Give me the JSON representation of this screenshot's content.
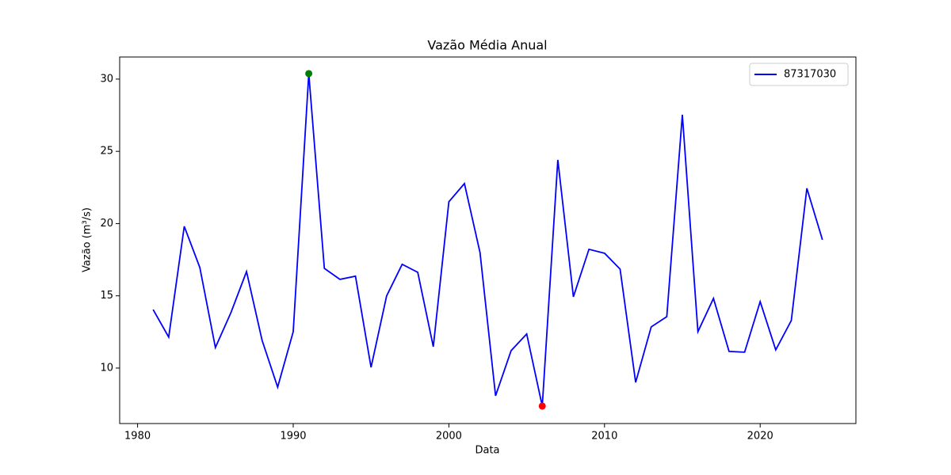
{
  "chart_data": {
    "type": "line",
    "title": "Vazão Média Anual",
    "xlabel": "Data",
    "ylabel": "Vazão (m³/s)",
    "x": [
      1981,
      1982,
      1983,
      1984,
      1985,
      1986,
      1987,
      1988,
      1989,
      1990,
      1991,
      1992,
      1993,
      1994,
      1995,
      1996,
      1997,
      1998,
      1999,
      2000,
      2001,
      2002,
      2003,
      2004,
      2005,
      2006,
      2007,
      2008,
      2009,
      2010,
      2011,
      2012,
      2013,
      2014,
      2015,
      2016,
      2017,
      2018,
      2019,
      2020,
      2021,
      2022,
      2023,
      2024
    ],
    "series": [
      {
        "name": "87317030",
        "color": "#0000ff",
        "values": [
          14.05,
          12.14,
          19.81,
          16.96,
          11.42,
          13.84,
          16.68,
          11.92,
          8.68,
          12.52,
          30.38,
          16.9,
          16.14,
          16.36,
          10.05,
          14.99,
          17.18,
          16.63,
          11.48,
          21.51,
          22.77,
          18.0,
          8.08,
          11.21,
          12.36,
          7.37,
          24.41,
          14.93,
          18.22,
          17.95,
          16.85,
          9.01,
          12.85,
          13.56,
          27.53,
          12.52,
          14.82,
          11.15,
          11.1,
          14.6,
          11.26,
          13.29,
          22.44,
          18.88
        ]
      }
    ],
    "markers": [
      {
        "x": 1991,
        "y": 30.38,
        "color": "#008000"
      },
      {
        "x": 2006,
        "y": 7.37,
        "color": "#ff0000"
      }
    ],
    "xlim": [
      1978.85,
      2026.15
    ],
    "xticks": [
      1980,
      1990,
      2000,
      2010,
      2020
    ],
    "ylim": [
      6.16,
      31.53
    ],
    "yticks": [
      10,
      15,
      20,
      25,
      30
    ],
    "grid": false,
    "legend": "upper right"
  }
}
